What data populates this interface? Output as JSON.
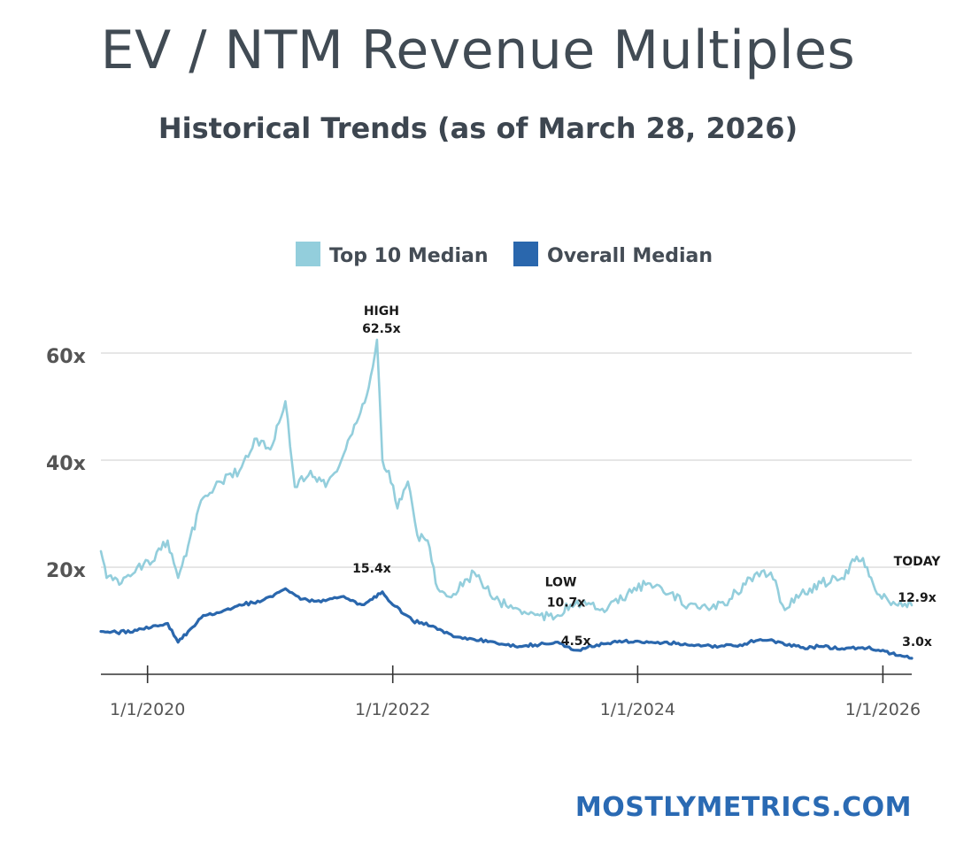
{
  "header": {
    "title": "EV / NTM Revenue Multiples",
    "subtitle": "Historical Trends (as of March 28, 2026)"
  },
  "footer": {
    "brand": "MOSTLYMETRICS.COM"
  },
  "colors": {
    "top10": "#93cedc",
    "overall": "#2a67ad",
    "grid": "#d6d6d6",
    "axis": "#333333",
    "tick_text": "#555555",
    "brand": "#2a6ab3"
  },
  "chart_data": {
    "type": "line",
    "legend_position": "top-center",
    "grid": true,
    "y_axis": {
      "ticks": [
        {
          "value": 20,
          "label": "20x"
        },
        {
          "value": 40,
          "label": "40x"
        },
        {
          "value": 60,
          "label": "60x"
        }
      ],
      "range": [
        0,
        65
      ]
    },
    "x_axis": {
      "range": [
        "2019-08-15",
        "2026-03-28"
      ],
      "ticks": [
        {
          "date": "2020-01-01",
          "label": "1/1/2020"
        },
        {
          "date": "2022-01-01",
          "label": "1/1/2022"
        },
        {
          "date": "2024-01-01",
          "label": "1/1/2024"
        },
        {
          "date": "2026-01-01",
          "label": "1/1/2026"
        }
      ]
    },
    "series": [
      {
        "name": "Top 10 Median",
        "color": "#93cedc",
        "points": [
          [
            "2019-08-15",
            23
          ],
          [
            "2019-09-01",
            18
          ],
          [
            "2019-10-15",
            17
          ],
          [
            "2019-12-01",
            20
          ],
          [
            "2020-01-15",
            21
          ],
          [
            "2020-03-01",
            25
          ],
          [
            "2020-04-01",
            18
          ],
          [
            "2020-05-01",
            24
          ],
          [
            "2020-06-15",
            33
          ],
          [
            "2020-08-01",
            36
          ],
          [
            "2020-10-01",
            38
          ],
          [
            "2020-11-15",
            44
          ],
          [
            "2021-01-01",
            42
          ],
          [
            "2021-02-15",
            51
          ],
          [
            "2021-03-15",
            35
          ],
          [
            "2021-05-01",
            38
          ],
          [
            "2021-06-15",
            35
          ],
          [
            "2021-08-01",
            40
          ],
          [
            "2021-09-15",
            47
          ],
          [
            "2021-10-15",
            52
          ],
          [
            "2021-11-15",
            62.5
          ],
          [
            "2021-12-01",
            40
          ],
          [
            "2021-12-20",
            38
          ],
          [
            "2022-01-15",
            31
          ],
          [
            "2022-02-15",
            36
          ],
          [
            "2022-03-15",
            26
          ],
          [
            "2022-04-15",
            25
          ],
          [
            "2022-05-15",
            16
          ],
          [
            "2022-07-01",
            15
          ],
          [
            "2022-09-01",
            19
          ],
          [
            "2022-11-01",
            14
          ],
          [
            "2023-01-15",
            12
          ],
          [
            "2023-03-15",
            11
          ],
          [
            "2023-05-01",
            10.7
          ],
          [
            "2023-06-15",
            13
          ],
          [
            "2023-08-01",
            13
          ],
          [
            "2023-10-01",
            12
          ],
          [
            "2023-12-01",
            15
          ],
          [
            "2024-02-01",
            17
          ],
          [
            "2024-04-01",
            15
          ],
          [
            "2024-06-01",
            13
          ],
          [
            "2024-08-01",
            12
          ],
          [
            "2024-10-01",
            14
          ],
          [
            "2024-12-01",
            18
          ],
          [
            "2025-02-01",
            19
          ],
          [
            "2025-03-15",
            12
          ],
          [
            "2025-05-01",
            15
          ],
          [
            "2025-07-01",
            17
          ],
          [
            "2025-09-01",
            18
          ],
          [
            "2025-10-15",
            22
          ],
          [
            "2025-11-15",
            20
          ],
          [
            "2025-12-15",
            15
          ],
          [
            "2026-02-01",
            13.5
          ],
          [
            "2026-03-28",
            12.9
          ]
        ]
      },
      {
        "name": "Overall Median",
        "color": "#2a67ad",
        "points": [
          [
            "2019-08-15",
            8
          ],
          [
            "2019-10-01",
            7.8
          ],
          [
            "2019-12-01",
            8.2
          ],
          [
            "2020-02-01",
            9
          ],
          [
            "2020-03-01",
            9.5
          ],
          [
            "2020-04-01",
            6
          ],
          [
            "2020-05-01",
            8
          ],
          [
            "2020-06-15",
            11
          ],
          [
            "2020-08-01",
            11.5
          ],
          [
            "2020-10-01",
            13
          ],
          [
            "2020-12-01",
            13.5
          ],
          [
            "2021-02-15",
            16
          ],
          [
            "2021-04-01",
            14
          ],
          [
            "2021-06-01",
            13.5
          ],
          [
            "2021-08-01",
            14.5
          ],
          [
            "2021-10-01",
            13
          ],
          [
            "2021-11-01",
            14
          ],
          [
            "2021-12-01",
            15.4
          ],
          [
            "2022-01-01",
            13
          ],
          [
            "2022-03-01",
            10
          ],
          [
            "2022-05-01",
            9
          ],
          [
            "2022-07-01",
            7
          ],
          [
            "2022-09-01",
            6.5
          ],
          [
            "2022-11-01",
            6
          ],
          [
            "2023-01-01",
            5.2
          ],
          [
            "2023-03-01",
            5.5
          ],
          [
            "2023-05-01",
            6
          ],
          [
            "2023-07-01",
            4.5
          ],
          [
            "2023-09-01",
            5.5
          ],
          [
            "2023-11-01",
            6
          ],
          [
            "2024-01-01",
            6.2
          ],
          [
            "2024-03-01",
            6
          ],
          [
            "2024-05-01",
            5.8
          ],
          [
            "2024-07-01",
            5.5
          ],
          [
            "2024-09-01",
            5.2
          ],
          [
            "2024-11-01",
            5.5
          ],
          [
            "2025-01-01",
            6.5
          ],
          [
            "2025-03-01",
            6
          ],
          [
            "2025-05-01",
            5
          ],
          [
            "2025-07-01",
            5.2
          ],
          [
            "2025-09-01",
            4.8
          ],
          [
            "2025-11-01",
            5
          ],
          [
            "2026-01-01",
            4.5
          ],
          [
            "2026-02-15",
            3.5
          ],
          [
            "2026-03-28",
            3.0
          ]
        ]
      }
    ],
    "annotations": [
      {
        "id": "high-label",
        "text": "HIGH",
        "date": "2021-11-15",
        "value": 62.5,
        "bold": true
      },
      {
        "id": "high-value",
        "text": "62.5x",
        "date": "2021-11-15",
        "value": 62.5,
        "bold": true
      },
      {
        "id": "overall-peak",
        "text": "15.4x",
        "date": "2021-12-01",
        "value": 15.4,
        "bold": true
      },
      {
        "id": "low-label",
        "text": "LOW",
        "date": "2023-05-01",
        "value": 10.7,
        "bold": true
      },
      {
        "id": "low-value",
        "text": "10.7x",
        "date": "2023-05-01",
        "value": 10.7,
        "bold": true
      },
      {
        "id": "overall-low",
        "text": "4.5x",
        "date": "2023-07-01",
        "value": 4.5,
        "bold": true
      },
      {
        "id": "today-label",
        "text": "TODAY",
        "date": "2026-03-28",
        "value": 12.9,
        "bold": true
      },
      {
        "id": "today-top10",
        "text": "12.9x",
        "date": "2026-03-28",
        "value": 12.9,
        "bold": true
      },
      {
        "id": "today-overall",
        "text": "3.0x",
        "date": "2026-03-28",
        "value": 3.0,
        "bold": true
      }
    ]
  }
}
